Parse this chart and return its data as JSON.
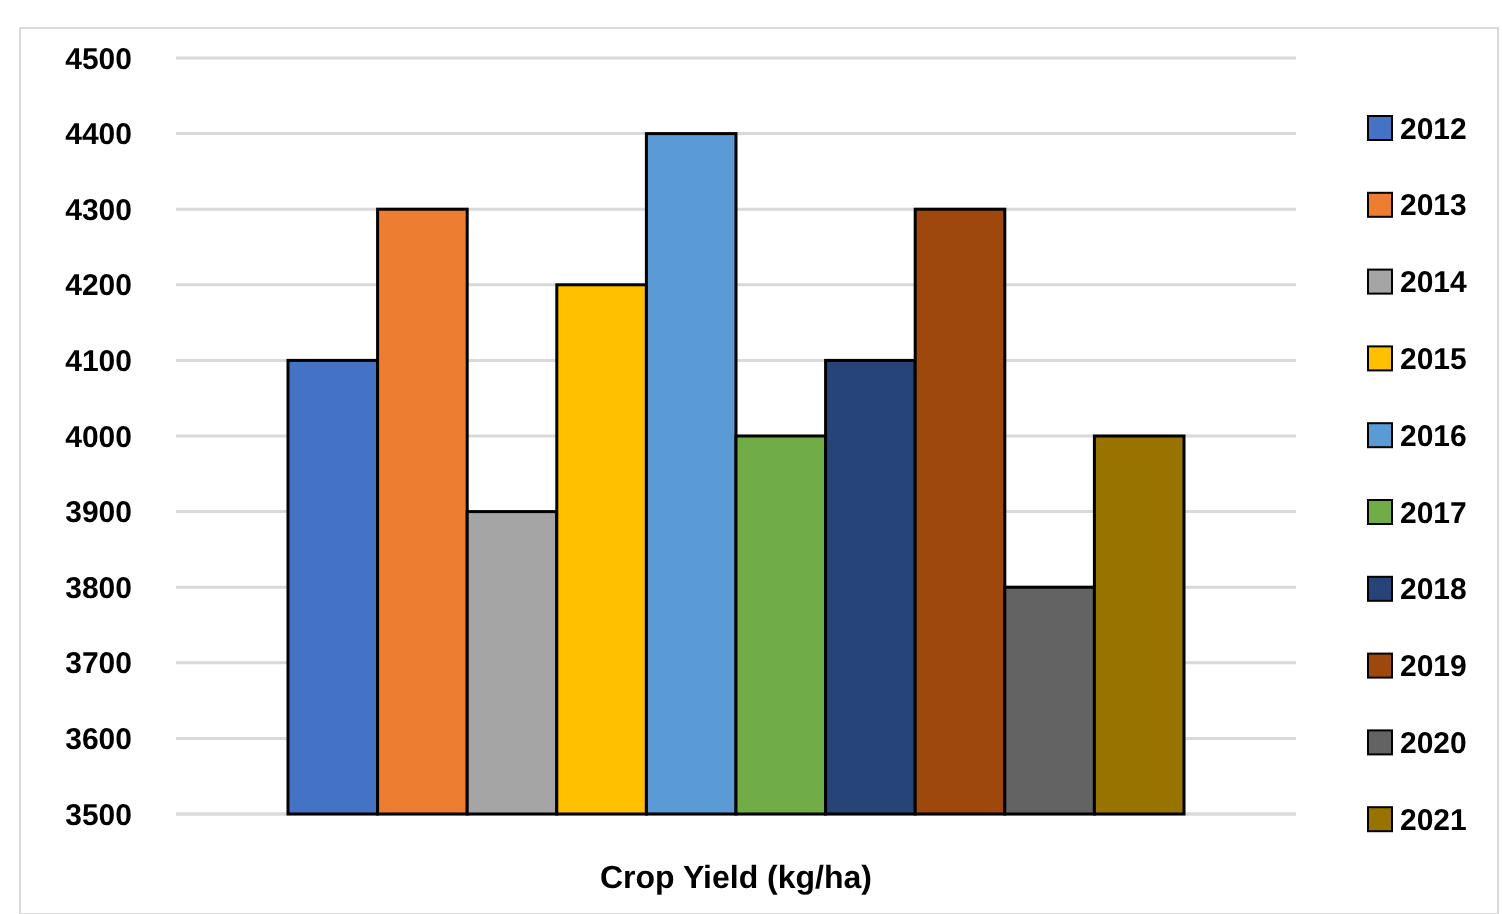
{
  "chart_data": {
    "type": "bar",
    "xlabel": "Crop Yield (kg/ha)",
    "categories": [
      null
    ],
    "series": [
      {
        "name": "2012",
        "color": "#4472c4",
        "values": [
          4100
        ]
      },
      {
        "name": "2013",
        "color": "#ed7d31",
        "values": [
          4300
        ]
      },
      {
        "name": "2014",
        "color": "#a5a5a5",
        "values": [
          3900
        ]
      },
      {
        "name": "2015",
        "color": "#ffc000",
        "values": [
          4200
        ]
      },
      {
        "name": "2016",
        "color": "#5b9bd5",
        "values": [
          4400
        ]
      },
      {
        "name": "2017",
        "color": "#70ad47",
        "values": [
          4000
        ]
      },
      {
        "name": "2018",
        "color": "#264478",
        "values": [
          4100
        ]
      },
      {
        "name": "2019",
        "color": "#9e480e",
        "values": [
          4300
        ]
      },
      {
        "name": "2020",
        "color": "#636363",
        "values": [
          3800
        ]
      },
      {
        "name": "2021",
        "color": "#997300",
        "values": [
          4000
        ]
      }
    ],
    "ylim": [
      3500,
      4500
    ],
    "yticks": [
      3500,
      3600,
      3700,
      3800,
      3900,
      4000,
      4100,
      4200,
      4300,
      4400,
      4500
    ],
    "grid": true,
    "legend": "right"
  }
}
